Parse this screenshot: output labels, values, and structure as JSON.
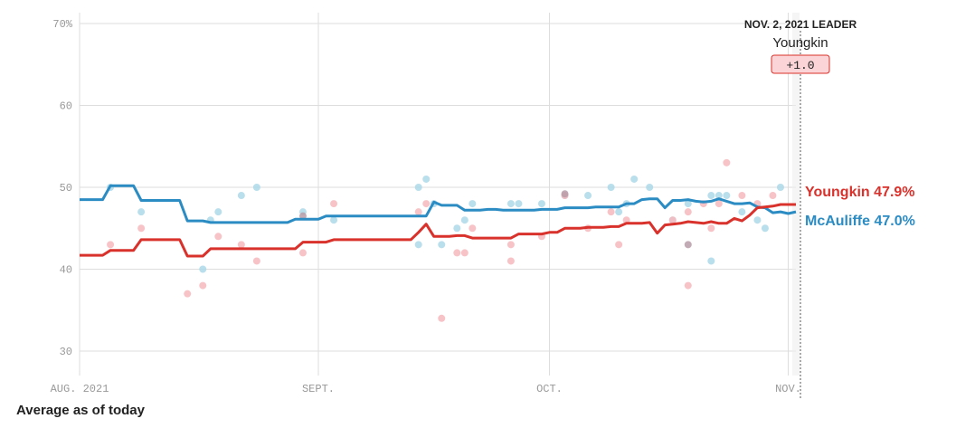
{
  "chart_data": {
    "type": "line",
    "title": "",
    "xlabel": "",
    "ylabel": "",
    "ylim": [
      28,
      71
    ],
    "yticks": [
      30,
      40,
      50,
      60,
      70
    ],
    "ytick_labels": [
      "30",
      "40",
      "50",
      "60",
      "70%"
    ],
    "x_range": [
      0,
      93
    ],
    "xticks": [
      {
        "day": 0,
        "label": "AUG. 2021"
      },
      {
        "day": 31,
        "label": "SEPT."
      },
      {
        "day": 61,
        "label": "OCT."
      },
      {
        "day": 92,
        "label": "NOV."
      }
    ],
    "today_day": 93,
    "series": [
      {
        "name": "McAuliffe",
        "color": "#2b8cc4",
        "end_label": "McAuliffe 47.0%",
        "x": [
          0,
          3,
          4,
          5,
          7,
          8,
          9,
          10,
          11,
          12,
          13,
          14,
          15,
          16,
          17,
          18,
          19,
          20,
          21,
          22,
          23,
          24,
          25,
          26,
          27,
          28,
          29,
          30,
          31,
          32,
          33,
          34,
          35,
          36,
          37,
          38,
          39,
          40,
          41,
          42,
          43,
          44,
          45,
          46,
          47,
          48,
          49,
          50,
          51,
          52,
          53,
          54,
          55,
          56,
          57,
          58,
          59,
          60,
          61,
          62,
          63,
          64,
          65,
          66,
          67,
          68,
          69,
          70,
          71,
          72,
          73,
          74,
          75,
          76,
          77,
          78,
          79,
          80,
          81,
          82,
          83,
          84,
          85,
          86,
          87,
          88,
          89,
          90,
          91,
          92,
          93
        ],
        "y": [
          48.5,
          48.5,
          50.2,
          50.2,
          50.2,
          48.4,
          48.4,
          48.4,
          48.4,
          48.4,
          48.4,
          45.9,
          45.9,
          45.9,
          45.7,
          45.7,
          45.7,
          45.7,
          45.7,
          45.7,
          45.7,
          45.7,
          45.7,
          45.7,
          45.7,
          46.1,
          46.1,
          46.1,
          46.1,
          46.5,
          46.5,
          46.5,
          46.5,
          46.5,
          46.5,
          46.5,
          46.5,
          46.5,
          46.5,
          46.5,
          46.5,
          46.5,
          46.5,
          48.2,
          47.8,
          47.8,
          47.8,
          47.2,
          47.2,
          47.2,
          47.3,
          47.3,
          47.2,
          47.2,
          47.2,
          47.2,
          47.2,
          47.3,
          47.3,
          47.3,
          47.5,
          47.5,
          47.5,
          47.5,
          47.6,
          47.6,
          47.6,
          47.6,
          48.0,
          48.0,
          48.5,
          48.6,
          48.6,
          47.5,
          48.4,
          48.4,
          48.5,
          48.3,
          48.2,
          48.3,
          48.6,
          48.3,
          48.0,
          48.0,
          48.1,
          47.6,
          47.5,
          46.9,
          47.0,
          46.8,
          47.0
        ]
      },
      {
        "name": "Youngkin",
        "color": "#d9312b",
        "end_label": "Youngkin 47.9%",
        "x": [
          0,
          3,
          4,
          5,
          7,
          8,
          9,
          10,
          11,
          12,
          13,
          14,
          15,
          16,
          17,
          18,
          19,
          20,
          21,
          22,
          23,
          24,
          25,
          26,
          27,
          28,
          29,
          30,
          31,
          32,
          33,
          34,
          35,
          36,
          37,
          38,
          39,
          40,
          41,
          42,
          43,
          44,
          45,
          46,
          47,
          48,
          49,
          50,
          51,
          52,
          53,
          54,
          55,
          56,
          57,
          58,
          59,
          60,
          61,
          62,
          63,
          64,
          65,
          66,
          67,
          68,
          69,
          70,
          71,
          72,
          73,
          74,
          75,
          76,
          77,
          78,
          79,
          80,
          81,
          82,
          83,
          84,
          85,
          86,
          87,
          88,
          89,
          90,
          91,
          92,
          93
        ],
        "y": [
          41.7,
          41.7,
          42.3,
          42.3,
          42.3,
          43.6,
          43.6,
          43.6,
          43.6,
          43.6,
          43.6,
          41.6,
          41.6,
          41.6,
          42.5,
          42.5,
          42.5,
          42.5,
          42.5,
          42.5,
          42.5,
          42.5,
          42.5,
          42.5,
          42.5,
          42.5,
          43.3,
          43.3,
          43.3,
          43.3,
          43.6,
          43.6,
          43.6,
          43.6,
          43.6,
          43.6,
          43.6,
          43.6,
          43.6,
          43.6,
          43.6,
          44.5,
          45.5,
          44.0,
          44.0,
          44.0,
          44.1,
          44.1,
          43.8,
          43.8,
          43.8,
          43.8,
          43.8,
          43.8,
          44.3,
          44.3,
          44.3,
          44.3,
          44.5,
          44.5,
          45.0,
          45.0,
          45.0,
          45.1,
          45.1,
          45.1,
          45.2,
          45.2,
          45.6,
          45.6,
          45.6,
          45.7,
          44.4,
          45.4,
          45.5,
          45.6,
          45.8,
          45.7,
          45.6,
          45.8,
          45.6,
          45.6,
          46.2,
          45.9,
          46.6,
          47.5,
          47.6,
          47.7,
          47.9,
          47.9,
          47.9
        ]
      }
    ],
    "polls": [
      {
        "candidate": "McAuliffe",
        "points": [
          [
            4,
            50
          ],
          [
            8,
            47
          ],
          [
            17,
            46
          ],
          [
            18,
            47
          ],
          [
            21,
            49
          ],
          [
            23,
            50
          ],
          [
            29,
            47
          ],
          [
            33,
            46
          ],
          [
            44,
            50
          ],
          [
            45,
            51
          ],
          [
            46,
            48
          ],
          [
            47,
            43
          ],
          [
            49,
            45
          ],
          [
            50,
            46
          ],
          [
            51,
            48
          ],
          [
            56,
            48
          ],
          [
            57,
            48
          ],
          [
            60,
            48
          ],
          [
            63,
            49
          ],
          [
            66,
            49
          ],
          [
            69,
            50
          ],
          [
            70,
            47
          ],
          [
            71,
            48
          ],
          [
            72,
            51
          ],
          [
            74,
            50
          ],
          [
            77,
            46
          ],
          [
            79,
            48
          ],
          [
            82,
            49
          ],
          [
            83,
            49
          ],
          [
            84,
            49
          ],
          [
            86,
            47
          ],
          [
            88,
            46
          ],
          [
            89,
            45
          ],
          [
            91,
            50
          ],
          [
            44,
            43
          ],
          [
            16,
            40
          ],
          [
            82,
            41
          ]
        ]
      },
      {
        "candidate": "Youngkin",
        "points": [
          [
            4,
            43
          ],
          [
            8,
            45
          ],
          [
            14,
            37
          ],
          [
            16,
            38
          ],
          [
            18,
            44
          ],
          [
            21,
            43
          ],
          [
            23,
            41
          ],
          [
            29,
            42
          ],
          [
            33,
            48
          ],
          [
            44,
            47
          ],
          [
            45,
            48
          ],
          [
            47,
            34
          ],
          [
            49,
            42
          ],
          [
            50,
            42
          ],
          [
            51,
            45
          ],
          [
            56,
            43
          ],
          [
            56,
            41
          ],
          [
            60,
            44
          ],
          [
            63,
            49
          ],
          [
            66,
            45
          ],
          [
            69,
            47
          ],
          [
            70,
            43
          ],
          [
            71,
            46
          ],
          [
            77,
            46
          ],
          [
            79,
            47
          ],
          [
            79,
            38
          ],
          [
            81,
            48
          ],
          [
            82,
            45
          ],
          [
            83,
            48
          ],
          [
            84,
            53
          ],
          [
            86,
            49
          ],
          [
            88,
            48
          ],
          [
            90,
            49
          ]
        ]
      },
      {
        "candidate": "Tie",
        "points": [
          [
            29,
            46.5
          ],
          [
            79,
            43
          ],
          [
            63,
            49.2
          ]
        ]
      }
    ],
    "leader_box": {
      "date": "NOV. 2, 2021 LEADER",
      "name": "Youngkin",
      "margin": "+1.0"
    },
    "footer": "Average as of today"
  }
}
